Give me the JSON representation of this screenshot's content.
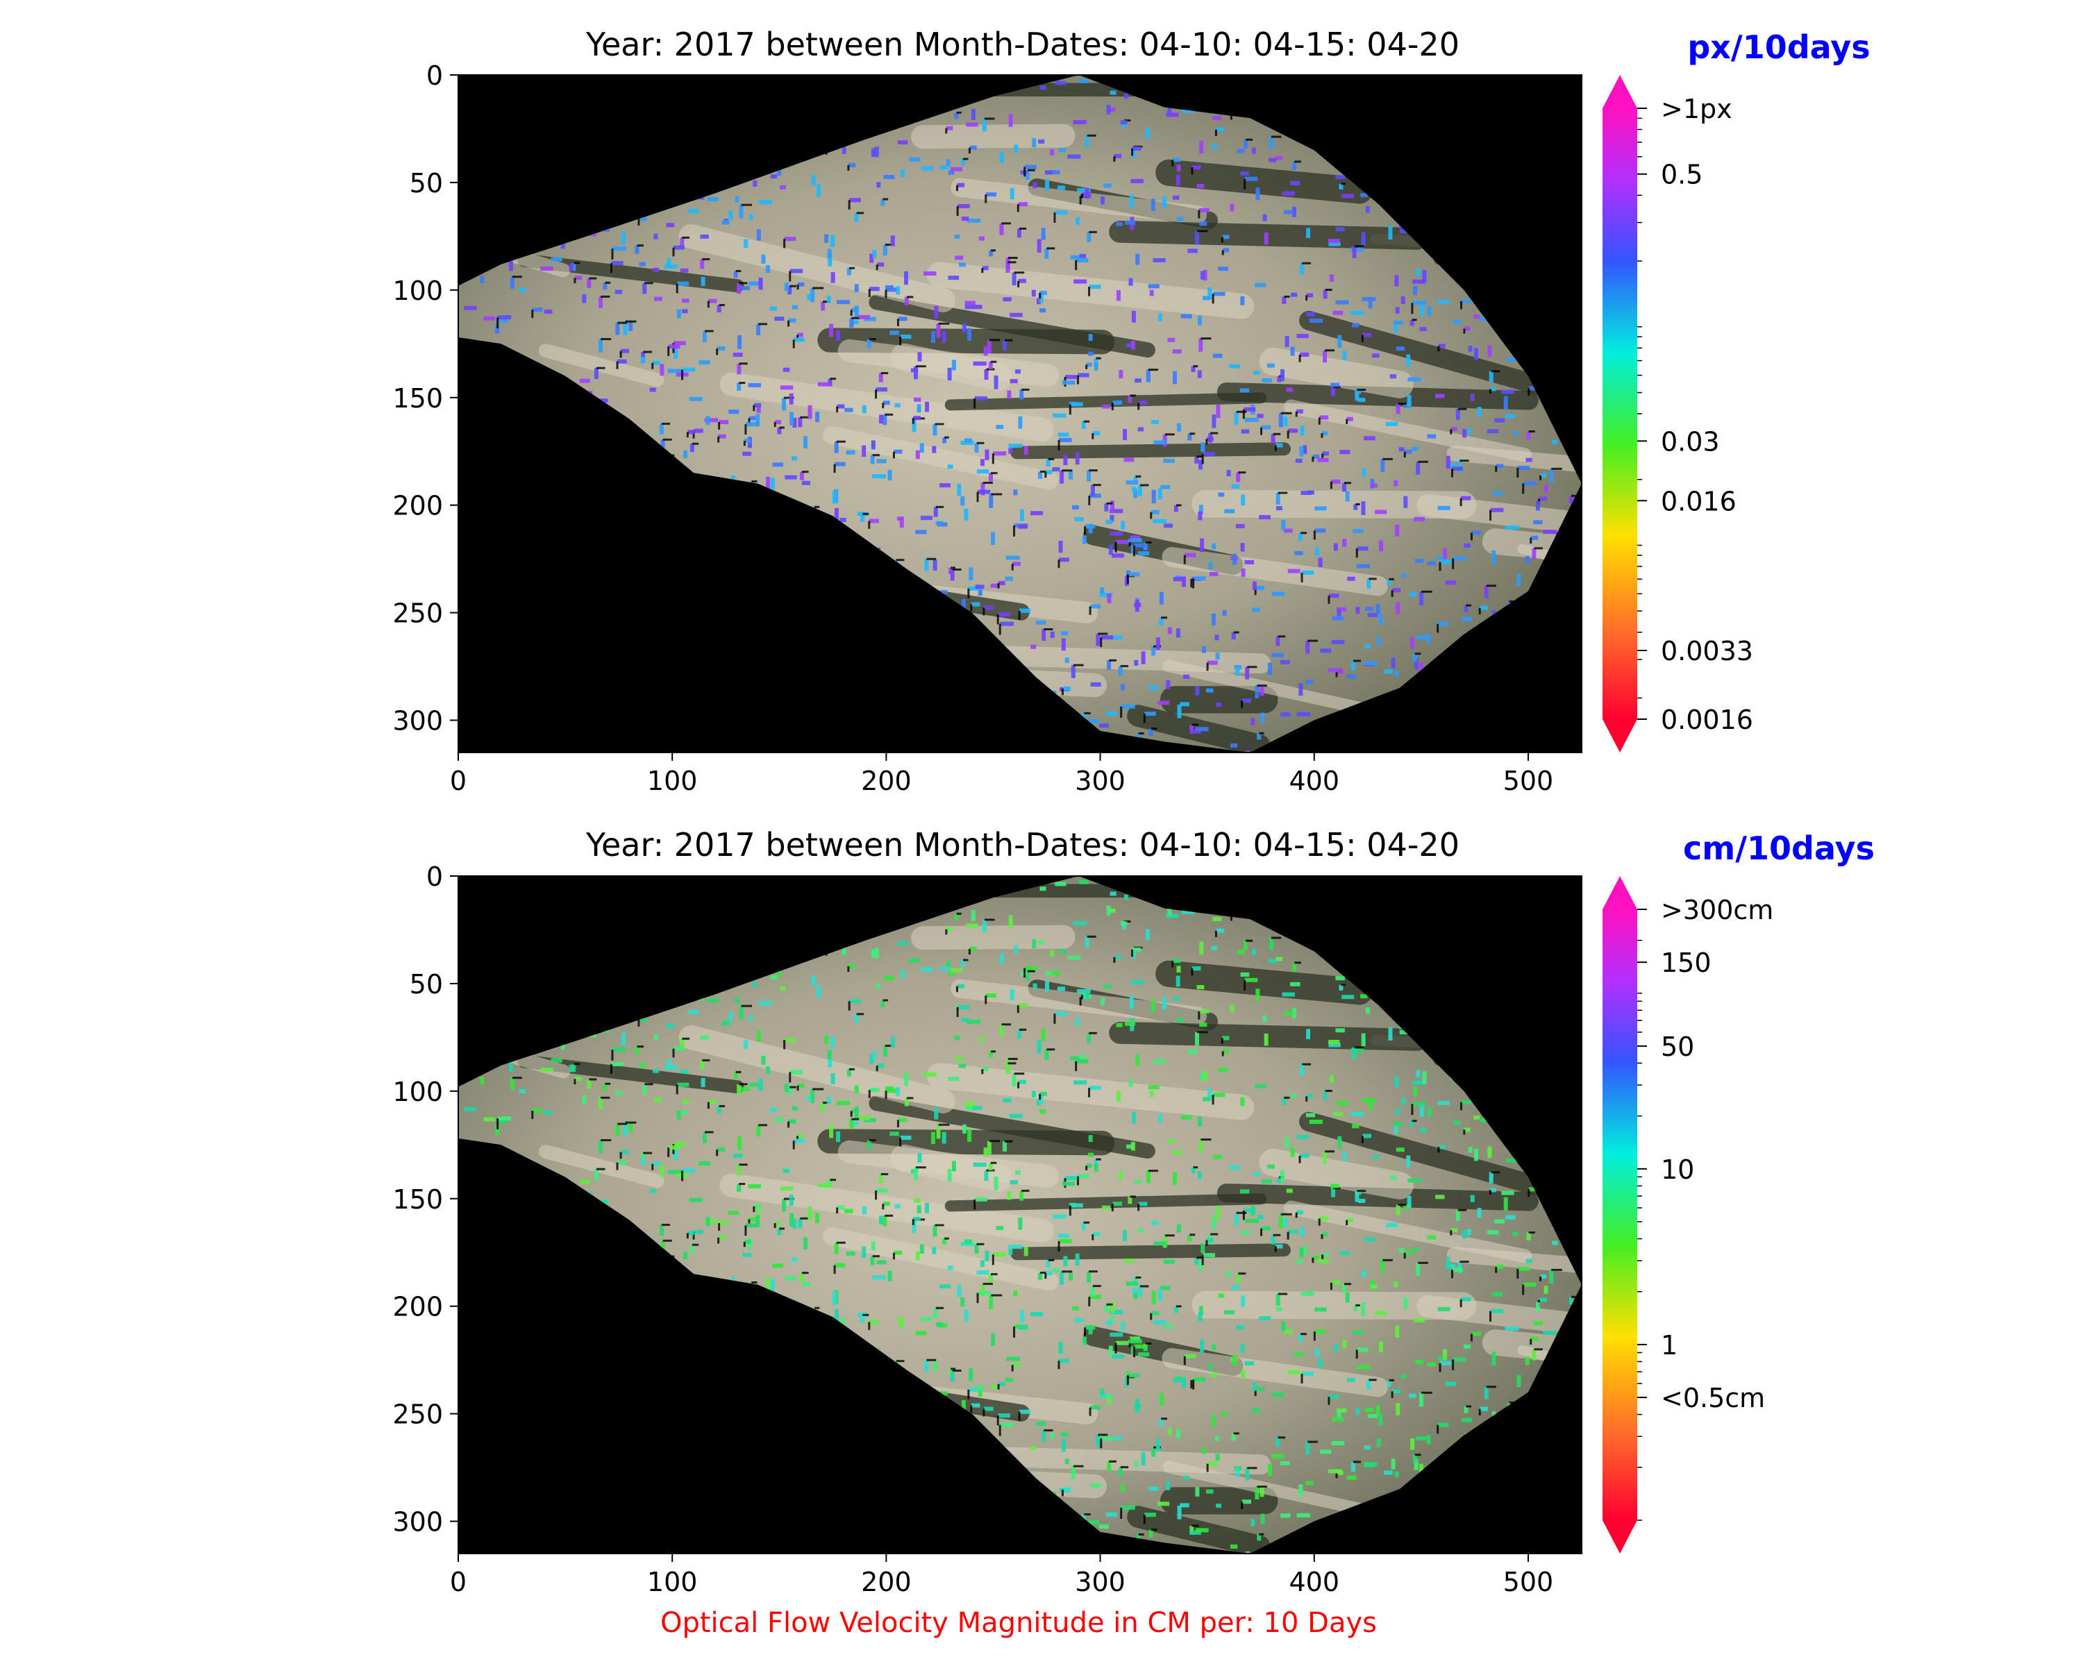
{
  "colors": {
    "accent_unit": "#0000ff",
    "caption": "#ff0000",
    "plot_bg": "#000000",
    "terrain_light": "#d9d2bf",
    "terrain_dark": "#2e3325"
  },
  "caption": "Optical Flow Velocity Magnitude in CM per: 10 Days",
  "chart_data": [
    {
      "type": "heatmap",
      "title": "Year: 2017 between Month-Dates: 04-10: 04-15: 04-20",
      "xlabel": "",
      "ylabel": "",
      "xlim": [
        0,
        525
      ],
      "ylim": [
        315,
        0
      ],
      "x_ticks": [
        "0",
        "100",
        "200",
        "300",
        "400",
        "500"
      ],
      "y_ticks": [
        "0",
        "50",
        "100",
        "150",
        "200",
        "250",
        "300"
      ],
      "grid": false,
      "colorbar": {
        "unit": "px/10days",
        "colormap": "gist_rainbow (red→magenta), extended both ends",
        "scale": "log",
        "min": 0.0016,
        "max": 1,
        "tick_labels": [
          ">1px",
          "0.5",
          "0.03",
          "0.016",
          "0.0033",
          "0.0016"
        ],
        "tick_values": [
          1,
          0.5,
          0.03,
          0.016,
          0.0033,
          0.0016
        ]
      },
      "dominant_magnitude": "blue to violet (≈0.3–0.8 px/10days) over most of the slope"
    },
    {
      "type": "heatmap",
      "title": "Year: 2017 between Month-Dates: 04-10: 04-15: 04-20",
      "xlabel": "Optical Flow Velocity Magnitude in CM per: 10 Days",
      "ylabel": "",
      "xlim": [
        0,
        525
      ],
      "ylim": [
        315,
        0
      ],
      "x_ticks": [
        "0",
        "100",
        "200",
        "300",
        "400",
        "500"
      ],
      "y_ticks": [
        "0",
        "50",
        "100",
        "150",
        "200",
        "250",
        "300"
      ],
      "grid": false,
      "colorbar": {
        "unit": "cm/10days",
        "colormap": "gist_rainbow (red→magenta), extended both ends",
        "scale": "log",
        "min": 0.1,
        "max": 300,
        "tick_labels": [
          ">300cm",
          "150",
          "50",
          "10",
          "1",
          "<0.5cm"
        ],
        "tick_values": [
          300,
          150,
          50,
          10,
          1,
          0.5
        ]
      },
      "dominant_magnitude": "green to cyan (≈2–10 cm/10days) over most of the slope"
    }
  ]
}
